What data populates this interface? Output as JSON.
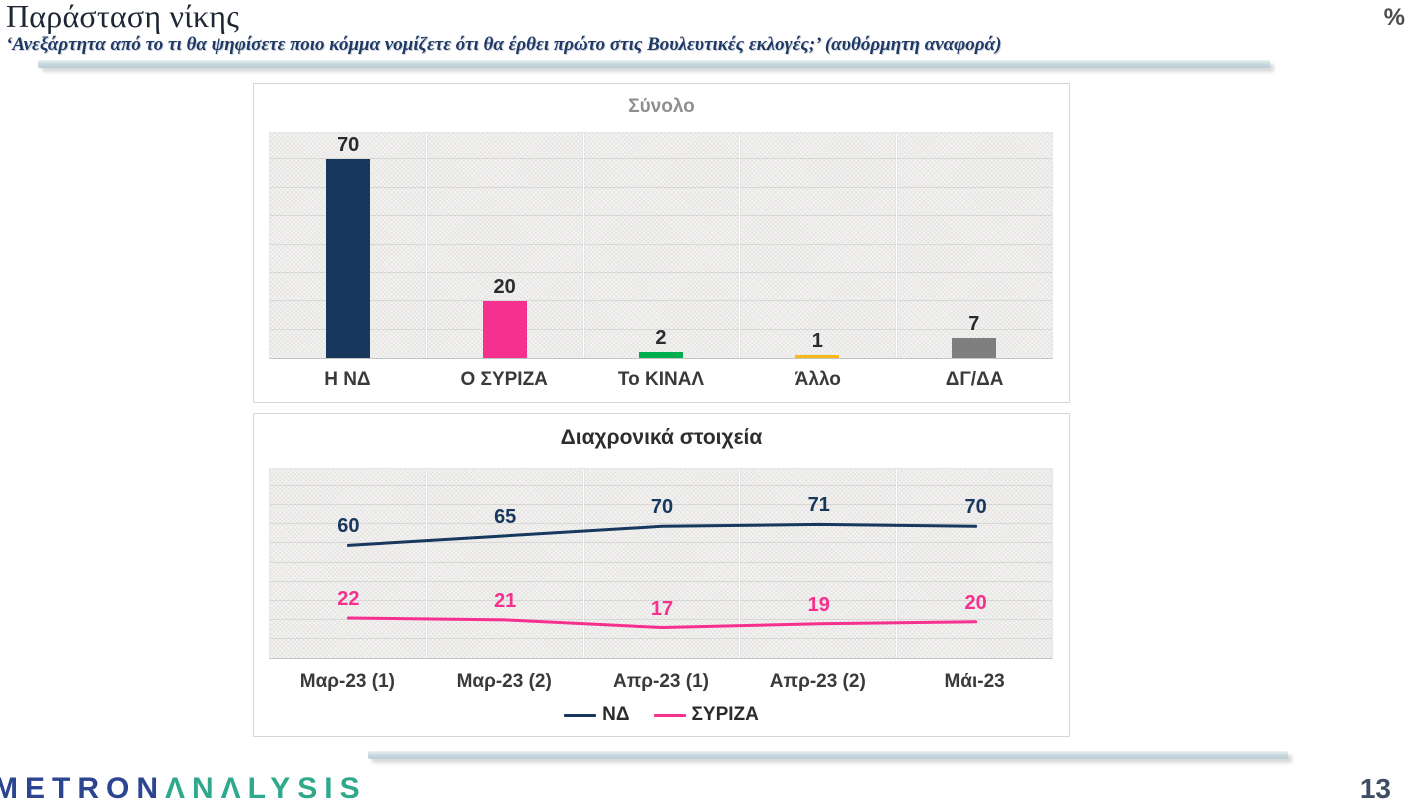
{
  "header": {
    "title": "Παράσταση νίκης",
    "subtitle": "‘Ανεξάρτητα από το τι θα ψηφίσετε ποιο κόμμα νομίζετε ότι θα έρθει πρώτο στις Βουλευτικές εκλογές;’ (αυθόρμητη αναφορά)",
    "unit_symbol": "%"
  },
  "chart_data": [
    {
      "type": "bar",
      "title": "Σύνολο",
      "categories": [
        "Η ΝΔ",
        "Ο ΣΥΡΙΖΑ",
        "Το ΚΙΝΑΛ",
        "Άλλο",
        "ΔΓ/ΔΑ"
      ],
      "values": [
        70,
        20,
        2,
        1,
        7
      ],
      "bar_colors": [
        "#17375d",
        "#f5308f",
        "#00ae4e",
        "#fbb817",
        "#7f7f7f"
      ],
      "data_labels": true,
      "ylim": [
        0,
        80
      ],
      "grid_step": 10,
      "grid": true,
      "xlabel": "",
      "ylabel": ""
    },
    {
      "type": "line",
      "title": "Διαχρονικά στοιχεία",
      "categories": [
        "Μαρ-23 (1)",
        "Μαρ-23 (2)",
        "Απρ-23 (1)",
        "Απρ-23 (2)",
        "Μάι-23"
      ],
      "series": [
        {
          "name": "ΝΔ",
          "color": "#17375d",
          "values": [
            60,
            65,
            70,
            71,
            70
          ]
        },
        {
          "name": "ΣΥΡΙΖΑ",
          "color": "#f5308f",
          "values": [
            22,
            21,
            17,
            19,
            20
          ]
        }
      ],
      "data_labels": true,
      "ylim": [
        0,
        100
      ],
      "grid_step": 10,
      "grid": true,
      "legend_position": "bottom",
      "xlabel": "",
      "ylabel": ""
    }
  ],
  "footer": {
    "logo_primary": "METRON",
    "logo_secondary": "ΛNΛLYSIS",
    "page_number": "13"
  }
}
